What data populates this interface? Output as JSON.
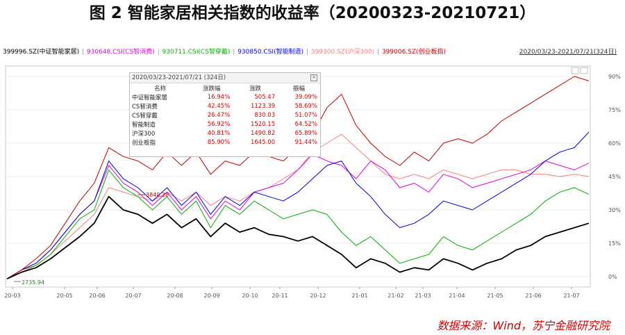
{
  "title": "图 2  智能家居相关指数的收益率（20200323-20210721）",
  "legend": [
    {
      "label": "399996.SZ(中证智能家居)",
      "color": "#000000"
    },
    {
      "label": "930648.CSI(CS智消费)",
      "color": "#e000e0"
    },
    {
      "label": "930711.CSI(CS智穿戴)",
      "color": "#00b000"
    },
    {
      "label": "930850.CSI(智能制造)",
      "color": "#0000e0"
    },
    {
      "label": "399300.SZ(沪深300)",
      "color": "#f08080"
    },
    {
      "label": "399006.SZ(创业板指)",
      "color": "#c00000"
    }
  ],
  "range_label": "2020/03/23-2021/07/21(324日)",
  "stats_box": {
    "title": "2020/03/23-2021/07/21 (324日)",
    "headers": [
      "名称",
      "涨跌幅",
      "涨跌",
      "振幅"
    ],
    "rows": [
      [
        "中证智能家居",
        "16.94%",
        "505.47",
        "39.09%"
      ],
      [
        "CS智消费",
        "42.45%",
        "1123.39",
        "58.69%"
      ],
      [
        "CS智穿戴",
        "26.47%",
        "830.03",
        "51.07%"
      ],
      [
        "智能制造",
        "56.92%",
        "1520.15",
        "64.52%"
      ],
      [
        "沪深300",
        "40.81%",
        "1490.82",
        "65.89%"
      ],
      [
        "创业板指",
        "85.90%",
        "1645.00",
        "91.44%"
      ]
    ]
  },
  "annotations": {
    "max_label": "3840.28",
    "min_label": "2735.94"
  },
  "source": "数据来源：Wind，苏宁金融研究院",
  "chart_data": {
    "type": "line",
    "x_ticks": [
      "20-03",
      "20-05",
      "20-06",
      "20-07",
      "20-08",
      "20-09",
      "20-10",
      "20-11",
      "20-12",
      "21-01",
      "21-02",
      "21-03",
      "21-04",
      "21-05",
      "21-06",
      "21-07"
    ],
    "y_ticks": [
      "90%",
      "75%",
      "60%",
      "45%",
      "30%",
      "15%",
      "0%"
    ],
    "ylim": [
      -2,
      95
    ],
    "series": [
      {
        "name": "399996.SZ(中证智能家居)",
        "color": "#000000",
        "values": [
          -1,
          2,
          4,
          8,
          13,
          18,
          24,
          36,
          30,
          28,
          24,
          28,
          22,
          26,
          18,
          24,
          20,
          22,
          19,
          18,
          16,
          18,
          14,
          10,
          4,
          8,
          6,
          2,
          4,
          3,
          8,
          6,
          3,
          6,
          8,
          12,
          14,
          18,
          20,
          22,
          24
        ]
      },
      {
        "name": "930648.CSI(CS智消费)",
        "color": "#e000e0",
        "values": [
          -1,
          3,
          6,
          12,
          20,
          28,
          34,
          50,
          42,
          38,
          32,
          38,
          30,
          36,
          26,
          34,
          30,
          38,
          40,
          42,
          48,
          55,
          52,
          50,
          44,
          52,
          48,
          40,
          42,
          38,
          46,
          44,
          40,
          42,
          44,
          46,
          48,
          52,
          50,
          48,
          51
        ]
      },
      {
        "name": "930711.CSI(CS智穿戴)",
        "color": "#00b000",
        "values": [
          -1,
          3,
          5,
          10,
          18,
          26,
          30,
          48,
          40,
          36,
          30,
          36,
          28,
          34,
          22,
          32,
          28,
          34,
          30,
          26,
          28,
          30,
          28,
          20,
          14,
          18,
          12,
          6,
          8,
          10,
          18,
          14,
          12,
          16,
          20,
          24,
          28,
          34,
          38,
          40,
          37
        ]
      },
      {
        "name": "930850.CSI(智能制造)",
        "color": "#0000e0",
        "values": [
          -1,
          3,
          6,
          12,
          20,
          28,
          34,
          52,
          44,
          40,
          34,
          40,
          32,
          38,
          28,
          36,
          32,
          38,
          36,
          34,
          38,
          44,
          50,
          52,
          42,
          36,
          28,
          22,
          24,
          28,
          34,
          32,
          30,
          34,
          38,
          42,
          46,
          52,
          56,
          58,
          65
        ]
      },
      {
        "name": "399300.SZ(沪深300)",
        "color": "#f08080",
        "values": [
          -1,
          2,
          5,
          10,
          16,
          22,
          28,
          40,
          38,
          36,
          34,
          38,
          34,
          38,
          32,
          36,
          34,
          38,
          40,
          44,
          48,
          56,
          60,
          64,
          58,
          52,
          46,
          44,
          46,
          44,
          48,
          46,
          44,
          46,
          48,
          48,
          46,
          46,
          45,
          46,
          45
        ]
      },
      {
        "name": "399006.SZ(创业板指)",
        "color": "#c00000",
        "values": [
          -1,
          3,
          8,
          14,
          24,
          34,
          42,
          58,
          54,
          52,
          48,
          56,
          50,
          56,
          46,
          52,
          50,
          56,
          54,
          52,
          58,
          64,
          76,
          82,
          68,
          60,
          54,
          50,
          56,
          52,
          60,
          62,
          60,
          64,
          70,
          74,
          78,
          82,
          86,
          90,
          88
        ]
      }
    ]
  }
}
